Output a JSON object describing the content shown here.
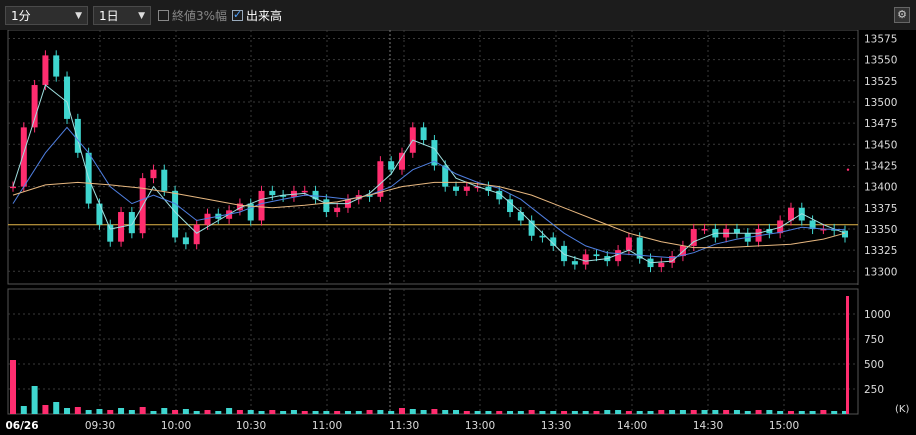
{
  "toolbar": {
    "interval": "1分",
    "period": "1日",
    "close3pct": "終値3%幅",
    "close3pct_checked": false,
    "volume": "出来高",
    "volume_checked": true
  },
  "chart_data": [
    {
      "type": "candlestick",
      "ylim": [
        13285,
        13585
      ],
      "y_ticks": [
        "13575",
        "13550",
        "13525",
        "13500",
        "13475",
        "13450",
        "13425",
        "13400",
        "13375",
        "13350",
        "13325",
        "13300"
      ],
      "x_ticks": [
        "06/26",
        "09:30",
        "10:00",
        "10:30",
        "11:00",
        "11:30",
        "13:00",
        "13:30",
        "14:00",
        "14:30",
        "15:00"
      ],
      "reference_line": 13355,
      "close_path": [
        [
          0,
          13400
        ],
        [
          1,
          13470
        ],
        [
          2,
          13520
        ],
        [
          3,
          13555
        ],
        [
          4,
          13530
        ],
        [
          5,
          13480
        ],
        [
          6,
          13440
        ],
        [
          7,
          13380
        ],
        [
          8,
          13355
        ],
        [
          9,
          13335
        ],
        [
          10,
          13370
        ],
        [
          11,
          13345
        ],
        [
          12,
          13410
        ],
        [
          13,
          13420
        ],
        [
          14,
          13395
        ],
        [
          15,
          13340
        ],
        [
          16,
          13332
        ],
        [
          17,
          13355
        ],
        [
          18,
          13368
        ],
        [
          19,
          13362
        ],
        [
          20,
          13372
        ],
        [
          21,
          13380
        ],
        [
          22,
          13360
        ],
        [
          23,
          13395
        ],
        [
          24,
          13390
        ],
        [
          25,
          13388
        ],
        [
          26,
          13395
        ],
        [
          27,
          13395
        ],
        [
          28,
          13385
        ],
        [
          29,
          13370
        ],
        [
          30,
          13375
        ],
        [
          31,
          13385
        ],
        [
          32,
          13390
        ],
        [
          33,
          13388
        ],
        [
          34,
          13430
        ],
        [
          35,
          13420
        ],
        [
          36,
          13440
        ],
        [
          37,
          13470
        ],
        [
          38,
          13455
        ],
        [
          39,
          13425
        ],
        [
          40,
          13400
        ],
        [
          41,
          13395
        ],
        [
          42,
          13400
        ],
        [
          43,
          13400
        ],
        [
          44,
          13395
        ],
        [
          45,
          13385
        ],
        [
          46,
          13370
        ],
        [
          47,
          13360
        ],
        [
          48,
          13342
        ],
        [
          49,
          13340
        ],
        [
          50,
          13330
        ],
        [
          51,
          13312
        ],
        [
          52,
          13308
        ],
        [
          53,
          13320
        ],
        [
          54,
          13318
        ],
        [
          55,
          13312
        ],
        [
          56,
          13325
        ],
        [
          57,
          13340
        ],
        [
          58,
          13315
        ],
        [
          59,
          13305
        ],
        [
          60,
          13310
        ],
        [
          61,
          13318
        ],
        [
          62,
          13330
        ],
        [
          63,
          13350
        ],
        [
          64,
          13350
        ],
        [
          65,
          13340
        ],
        [
          66,
          13350
        ],
        [
          67,
          13345
        ],
        [
          68,
          13335
        ],
        [
          69,
          13350
        ],
        [
          70,
          13345
        ],
        [
          71,
          13360
        ],
        [
          72,
          13375
        ],
        [
          73,
          13360
        ],
        [
          74,
          13350
        ],
        [
          75,
          13350
        ],
        [
          76,
          13348
        ],
        [
          77,
          13340
        ]
      ],
      "series": [
        {
          "name": "",
          "color": "#9fe0e0",
          "points": [
            [
              0,
              13400
            ],
            [
              2,
              13480
            ],
            [
              3,
              13520
            ],
            [
              5,
              13500
            ],
            [
              7,
              13410
            ],
            [
              9,
              13350
            ],
            [
              11,
              13355
            ],
            [
              13,
              13400
            ],
            [
              15,
              13370
            ],
            [
              17,
              13345
            ],
            [
              19,
              13360
            ],
            [
              21,
              13375
            ],
            [
              23,
              13385
            ],
            [
              25,
              13390
            ],
            [
              27,
              13392
            ],
            [
              29,
              13380
            ],
            [
              31,
              13380
            ],
            [
              33,
              13392
            ],
            [
              35,
              13415
            ],
            [
              37,
              13455
            ],
            [
              39,
              13445
            ],
            [
              41,
              13410
            ],
            [
              43,
              13400
            ],
            [
              45,
              13392
            ],
            [
              47,
              13370
            ],
            [
              49,
              13345
            ],
            [
              51,
              13320
            ],
            [
              53,
              13312
            ],
            [
              55,
              13315
            ],
            [
              57,
              13325
            ],
            [
              59,
              13310
            ],
            [
              61,
              13312
            ],
            [
              63,
              13335
            ],
            [
              65,
              13345
            ],
            [
              67,
              13345
            ],
            [
              69,
              13345
            ],
            [
              71,
              13352
            ],
            [
              73,
              13368
            ],
            [
              75,
              13355
            ],
            [
              77,
              13345
            ]
          ]
        },
        {
          "name": "",
          "color": "#4f7fe0",
          "points": [
            [
              0,
              13380
            ],
            [
              3,
              13440
            ],
            [
              5,
              13470
            ],
            [
              7,
              13440
            ],
            [
              9,
              13400
            ],
            [
              11,
              13380
            ],
            [
              13,
              13390
            ],
            [
              15,
              13380
            ],
            [
              17,
              13360
            ],
            [
              19,
              13365
            ],
            [
              21,
              13370
            ],
            [
              23,
              13380
            ],
            [
              25,
              13385
            ],
            [
              27,
              13390
            ],
            [
              29,
              13388
            ],
            [
              31,
              13385
            ],
            [
              33,
              13390
            ],
            [
              35,
              13400
            ],
            [
              37,
              13420
            ],
            [
              39,
              13430
            ],
            [
              41,
              13415
            ],
            [
              43,
              13405
            ],
            [
              45,
              13398
            ],
            [
              47,
              13385
            ],
            [
              49,
              13365
            ],
            [
              51,
              13345
            ],
            [
              53,
              13330
            ],
            [
              55,
              13322
            ],
            [
              57,
              13320
            ],
            [
              59,
              13318
            ],
            [
              61,
              13316
            ],
            [
              63,
              13322
            ],
            [
              65,
              13332
            ],
            [
              67,
              13338
            ],
            [
              69,
              13342
            ],
            [
              71,
              13346
            ],
            [
              73,
              13352
            ],
            [
              75,
              13350
            ],
            [
              77,
              13349
            ]
          ]
        },
        {
          "name": "",
          "color": "#e8b880",
          "points": [
            [
              0,
              13390
            ],
            [
              3,
              13402
            ],
            [
              6,
              13405
            ],
            [
              9,
              13402
            ],
            [
              12,
              13398
            ],
            [
              15,
              13392
            ],
            [
              18,
              13385
            ],
            [
              21,
              13378
            ],
            [
              24,
              13375
            ],
            [
              27,
              13378
            ],
            [
              30,
              13382
            ],
            [
              33,
              13390
            ],
            [
              36,
              13400
            ],
            [
              39,
              13405
            ],
            [
              42,
              13405
            ],
            [
              45,
              13400
            ],
            [
              48,
              13390
            ],
            [
              51,
              13375
            ],
            [
              54,
              13360
            ],
            [
              57,
              13345
            ],
            [
              60,
              13335
            ],
            [
              63,
              13328
            ],
            [
              66,
              13328
            ],
            [
              69,
              13330
            ],
            [
              72,
              13332
            ],
            [
              75,
              13338
            ],
            [
              77,
              13345
            ]
          ]
        }
      ]
    },
    {
      "type": "bar",
      "ylim": [
        0,
        1250
      ],
      "y_ticks": [
        "1000",
        "750",
        "500",
        "250"
      ],
      "unit": "(K)",
      "values": [
        540,
        80,
        280,
        90,
        120,
        60,
        70,
        40,
        50,
        40,
        60,
        40,
        70,
        30,
        60,
        40,
        50,
        30,
        40,
        30,
        60,
        40,
        40,
        30,
        40,
        30,
        40,
        30,
        30,
        30,
        30,
        30,
        30,
        40,
        40,
        30,
        60,
        50,
        40,
        50,
        40,
        40,
        30,
        30,
        30,
        30,
        30,
        30,
        40,
        30,
        30,
        30,
        30,
        30,
        30,
        40,
        40,
        30,
        30,
        30,
        40,
        40,
        40,
        40,
        40,
        40,
        40,
        40,
        30,
        40,
        40,
        30,
        30,
        30,
        30,
        40,
        30,
        30
      ],
      "last_value": 1180
    }
  ]
}
